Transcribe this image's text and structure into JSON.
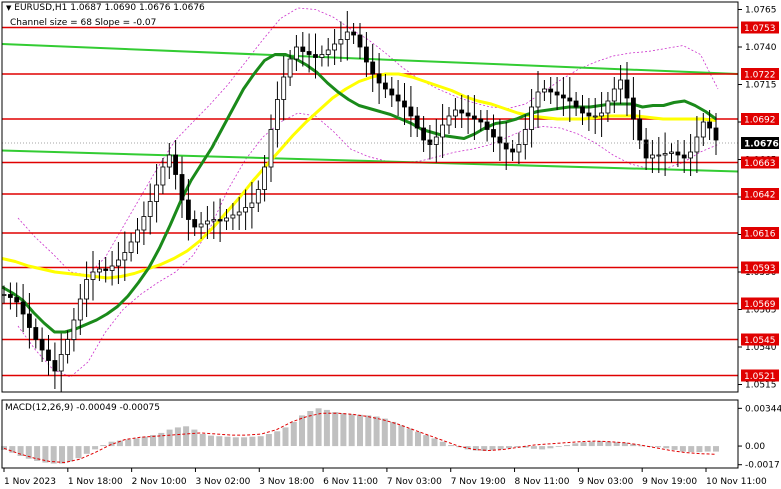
{
  "header": {
    "symbol_line": "EURUSD,H1  1.0687 1.0690 1.0676 1.0676",
    "channel_line": "Channel size = 68 Slope = -0.07"
  },
  "macd": {
    "label": "MACD(12,26,9) -0.00049 -0.00075"
  },
  "chart_data": [
    {
      "type": "candlestick",
      "title": "EURUSD,H1",
      "ohlc_last": [
        1.0687,
        1.069,
        1.0676,
        1.0676
      ],
      "x_ticks": [
        "1 Nov 2023",
        "1 Nov 18:00",
        "2 Nov 10:00",
        "3 Nov 02:00",
        "3 Nov 18:00",
        "6 Nov 11:00",
        "7 Nov 03:00",
        "7 Nov 19:00",
        "8 Nov 11:00",
        "9 Nov 03:00",
        "9 Nov 19:00",
        "10 Nov 11:00"
      ],
      "y_ticks": [
        1.0765,
        1.074,
        1.0715,
        1.069,
        1.0665,
        1.064,
        1.0615,
        1.059,
        1.0565,
        1.054,
        1.0515
      ],
      "ylim": [
        1.051,
        1.077
      ],
      "current_price": 1.0676,
      "levels": [
        1.0753,
        1.0722,
        1.0692,
        1.0663,
        1.0642,
        1.0616,
        1.0593,
        1.0569,
        1.0545,
        1.0521
      ],
      "channel": {
        "size": 68,
        "slope": -0.07,
        "upper": [
          1.0742,
          1.0722
        ],
        "lower": [
          1.0671,
          1.0657
        ]
      },
      "close_series": [
        1.0575,
        1.0573,
        1.057,
        1.0562,
        1.0553,
        1.0545,
        1.0538,
        1.0531,
        1.0524,
        1.0535,
        1.0545,
        1.0558,
        1.0572,
        1.0585,
        1.059,
        1.0592,
        1.0591,
        1.0594,
        1.0598,
        1.0603,
        1.061,
        1.0618,
        1.0627,
        1.0637,
        1.0648,
        1.066,
        1.0668,
        1.0655,
        1.0638,
        1.0625,
        1.062,
        1.0622,
        1.0624,
        1.0625,
        1.0624,
        1.0626,
        1.0628,
        1.063,
        1.0633,
        1.0636,
        1.0645,
        1.066,
        1.0685,
        1.0705,
        1.072,
        1.0732,
        1.074,
        1.0737,
        1.0735,
        1.0733,
        1.0735,
        1.0738,
        1.0742,
        1.0745,
        1.075,
        1.0748,
        1.074,
        1.073,
        1.0722,
        1.0716,
        1.0712,
        1.0708,
        1.0704,
        1.07,
        1.0694,
        1.0686,
        1.0678,
        1.0675,
        1.068,
        1.0688,
        1.0694,
        1.0698,
        1.0696,
        1.0694,
        1.0692,
        1.069,
        1.0685,
        1.068,
        1.0676,
        1.0672,
        1.067,
        1.0675,
        1.0685,
        1.07,
        1.071,
        1.0712,
        1.071,
        1.0708,
        1.0706,
        1.0704,
        1.07,
        1.0696,
        1.0694,
        1.0694,
        1.0696,
        1.0704,
        1.0712,
        1.0718,
        1.0706,
        1.0692,
        1.0678,
        1.0666,
        1.0668,
        1.0668,
        1.0669,
        1.067,
        1.0668,
        1.0666,
        1.067,
        1.068,
        1.069,
        1.0686,
        1.0678
      ],
      "ma_green": [
        1.058,
        1.0576,
        1.0571,
        1.0563,
        1.0556,
        1.055,
        1.055,
        1.0552,
        1.0555,
        1.0558,
        1.0562,
        1.0567,
        1.0574,
        1.0583,
        1.0593,
        1.0606,
        1.0621,
        1.0637,
        1.0651,
        1.0662,
        1.0673,
        1.0686,
        1.0699,
        1.0712,
        1.0722,
        1.0731,
        1.0735,
        1.0735,
        1.0732,
        1.0728,
        1.0723,
        1.0716,
        1.071,
        1.0705,
        1.0701,
        1.0699,
        1.0697,
        1.0695,
        1.0692,
        1.0689,
        1.0685,
        1.0683,
        1.0681,
        1.068,
        1.0679,
        1.0682,
        1.0686,
        1.0689,
        1.069,
        1.0692,
        1.0695,
        1.0697,
        1.0698,
        1.0699,
        1.07,
        1.07,
        1.07,
        1.0701,
        1.0702,
        1.0702,
        1.0702,
        1.07,
        1.0701,
        1.0701,
        1.0703,
        1.0704,
        1.0701,
        1.0697,
        1.0692
      ],
      "ma_yellow": [
        1.0599,
        1.0597,
        1.0594,
        1.0592,
        1.059,
        1.0589,
        1.0588,
        1.0587,
        1.0586,
        1.0587,
        1.0589,
        1.0592,
        1.0595,
        1.0599,
        1.0604,
        1.0611,
        1.062,
        1.063,
        1.064,
        1.0651,
        1.0661,
        1.0671,
        1.0681,
        1.069,
        1.0698,
        1.0706,
        1.0712,
        1.0717,
        1.072,
        1.0722,
        1.0722,
        1.072,
        1.0717,
        1.0714,
        1.0711,
        1.0707,
        1.0704,
        1.0702,
        1.0699,
        1.0696,
        1.0694,
        1.0693,
        1.0692,
        1.0692,
        1.0692,
        1.0693,
        1.0694,
        1.0694,
        1.0694,
        1.0693,
        1.0692,
        1.0692,
        1.0692,
        1.0692,
        1.0691
      ],
      "envelope_upper": [
        1.0626,
        1.0613,
        1.0602,
        1.059,
        1.0588,
        1.06,
        1.062,
        1.064,
        1.066,
        1.0678,
        1.069,
        1.0702,
        1.0715,
        1.073,
        1.0745,
        1.0759,
        1.0766,
        1.0765,
        1.076,
        1.0752,
        1.0745,
        1.0736,
        1.0726,
        1.0718,
        1.0712,
        1.0707,
        1.0703,
        1.07,
        1.0699,
        1.0702,
        1.071,
        1.0718,
        1.0725,
        1.073,
        1.0734,
        1.0736,
        1.0737,
        1.0739,
        1.0741,
        1.0735,
        1.0712
      ],
      "envelope_lower": [
        1.0554,
        1.0538,
        1.0525,
        1.052,
        1.053,
        1.055,
        1.0565,
        1.0575,
        1.0583,
        1.059,
        1.0601,
        1.062,
        1.0645,
        1.0665,
        1.068,
        1.069,
        1.0696,
        1.0694,
        1.0684,
        1.0672,
        1.0667,
        1.0664,
        1.0663,
        1.0664,
        1.0667,
        1.067,
        1.0672,
        1.0675,
        1.068,
        1.0685,
        1.0687,
        1.0686,
        1.0682,
        1.0676,
        1.0668,
        1.0662,
        1.0659,
        1.0659,
        1.0663,
        1.067,
        1.0675
      ]
    },
    {
      "type": "bar",
      "title": "MACD(12,26,9)",
      "main": -0.00049,
      "signal": -0.00075,
      "y_ticks": [
        0.00344,
        0.0,
        -0.0017
      ],
      "ylim": [
        -0.002,
        0.0042
      ],
      "histogram": [
        -0.00035,
        -0.0006,
        -0.0009,
        -0.00115,
        -0.00135,
        -0.0015,
        -0.0016,
        -0.0016,
        -0.0014,
        -0.0011,
        -0.0007,
        -0.0003,
        0.0001,
        0.0004,
        0.0005,
        0.0006,
        0.0007,
        0.00085,
        0.001,
        0.0012,
        0.0015,
        0.0017,
        0.0018,
        0.0015,
        0.0011,
        0.00095,
        0.0009,
        0.00085,
        0.0008,
        0.0008,
        0.00085,
        0.0009,
        0.0011,
        0.00135,
        0.0017,
        0.0022,
        0.0028,
        0.0032,
        0.00344,
        0.0033,
        0.0031,
        0.003,
        0.0029,
        0.00285,
        0.0028,
        0.0027,
        0.0025,
        0.0022,
        0.0019,
        0.0016,
        0.0013,
        0.001,
        0.0007,
        0.0004,
        0.0001,
        -0.0001,
        -0.0003,
        -0.0004,
        -0.00045,
        -0.0004,
        -0.0003,
        -0.0002,
        -0.0001,
        -0.00015,
        -0.00025,
        -0.0003,
        -0.0002,
        -5e-05,
        0.0001,
        0.00025,
        0.00035,
        0.0004,
        0.00045,
        0.0004,
        0.00035,
        0.0003,
        0.0002,
        5e-05,
        -5e-05,
        -0.0001,
        -0.0002,
        -0.00035,
        -0.0005,
        -0.00055,
        -0.00055,
        -0.0005,
        -0.0005
      ],
      "signal_series": [
        -0.0002,
        -0.0007,
        -0.0011,
        -0.0014,
        -0.0015,
        -0.0012,
        -0.0006,
        0.0001,
        0.0006,
        0.0008,
        0.0009,
        0.001,
        0.0011,
        0.0012,
        0.0011,
        0.001,
        0.001,
        0.0011,
        0.0015,
        0.0022,
        0.0027,
        0.003,
        0.003,
        0.0029,
        0.0027,
        0.0024,
        0.002,
        0.0015,
        0.001,
        0.0005,
        0.0,
        -0.0003,
        -0.0004,
        -0.0003,
        -0.0001,
        0.0001,
        0.0002,
        0.0003,
        0.0004,
        0.00045,
        0.0004,
        0.0003,
        0.0001,
        -0.00015,
        -0.0004,
        -0.0006,
        -0.0007,
        -0.00075
      ]
    }
  ],
  "colors": {
    "level_line": "#e00000",
    "level_label_bg": "#e00000",
    "current_price_bg": "#000000",
    "candle": "#000000",
    "ma_green": "#1a8a1a",
    "ma_yellow": "#ffff00",
    "channel": "#33cc33",
    "envelope": "#cc33cc",
    "macd_hist": "#c0c0c0",
    "macd_signal": "#e00000",
    "grid_text": "#000000"
  }
}
